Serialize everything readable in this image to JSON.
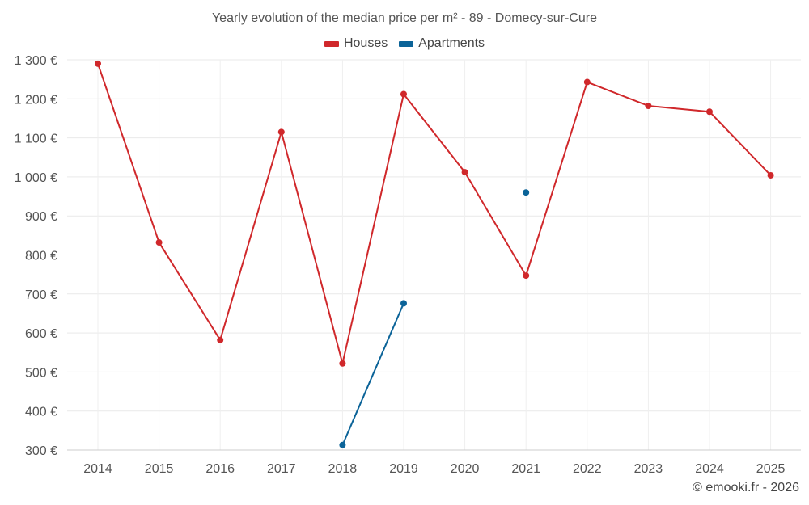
{
  "chart_data": {
    "type": "line",
    "title": "Yearly evolution of the median price per m² - 89 - Domecy-sur-Cure",
    "categories": [
      "2014",
      "2015",
      "2016",
      "2017",
      "2018",
      "2019",
      "2020",
      "2021",
      "2022",
      "2023",
      "2024",
      "2025"
    ],
    "ylim": [
      300,
      1300
    ],
    "yticks": [
      300,
      400,
      500,
      600,
      700,
      800,
      900,
      1000,
      1100,
      1200,
      1300
    ],
    "ytick_labels": [
      "300 €",
      "400 €",
      "500 €",
      "600 €",
      "700 €",
      "800 €",
      "900 €",
      "1 000 €",
      "1 100 €",
      "1 200 €",
      "1 300 €"
    ],
    "grid": true,
    "legend_position": "top-center",
    "series": [
      {
        "name": "Houses",
        "color": "#d0282b",
        "values": [
          1290,
          832,
          582,
          1115,
          522,
          1212,
          1012,
          747,
          1243,
          1182,
          1167,
          1004
        ]
      },
      {
        "name": "Apartments",
        "color": "#0b6398",
        "values": [
          null,
          null,
          null,
          null,
          313,
          676,
          null,
          960,
          null,
          null,
          null,
          null
        ]
      }
    ]
  },
  "credit": "© emooki.fr - 2026"
}
